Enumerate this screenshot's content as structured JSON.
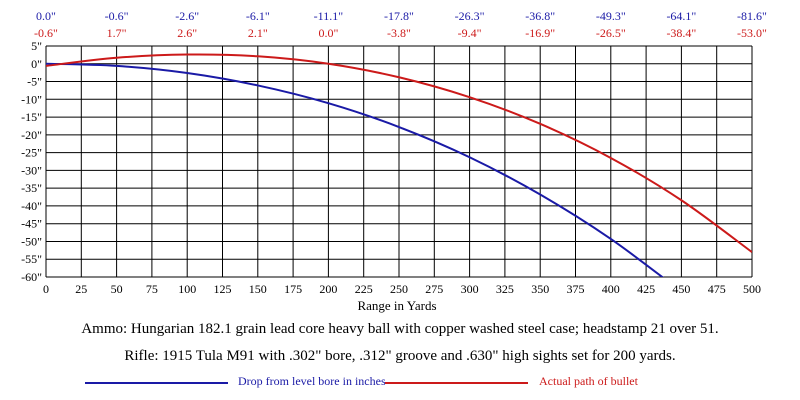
{
  "chart_data": {
    "type": "line",
    "xlabel": "Range in Yards",
    "ylabel": "",
    "xlim": [
      0,
      500
    ],
    "ylim": [
      -60,
      5
    ],
    "x_ticks": [
      0,
      25,
      50,
      75,
      100,
      125,
      150,
      175,
      200,
      225,
      250,
      275,
      300,
      325,
      350,
      375,
      400,
      425,
      450,
      475,
      500
    ],
    "y_ticks": [
      5,
      0,
      -5,
      -10,
      -15,
      -20,
      -25,
      -30,
      -35,
      -40,
      -45,
      -50,
      -55,
      -60
    ],
    "y_tick_labels": [
      "5\"",
      "0\"",
      "-5\"",
      "-10\"",
      "-15\"",
      "-20\"",
      "-25\"",
      "-30\"",
      "-35\"",
      "-40\"",
      "-45\"",
      "-50\"",
      "-55\"",
      "-60\""
    ],
    "grid": true,
    "drop_row_labels": [
      "0.0\"",
      "-0.6\"",
      "-2.6\"",
      "-6.1\"",
      "-11.1\"",
      "-17.8\"",
      "-26.3\"",
      "-36.8\"",
      "-49.3\"",
      "-64.1\"",
      "-81.6\""
    ],
    "path_row_labels": [
      "-0.6\"",
      "1.7\"",
      "2.6\"",
      "2.1\"",
      "0.0\"",
      "-3.8\"",
      "-9.4\"",
      "-16.9\"",
      "-26.5\"",
      "-38.4\"",
      "-53.0\""
    ],
    "label_x": [
      0,
      50,
      100,
      150,
      200,
      250,
      300,
      350,
      400,
      450,
      500
    ],
    "series": [
      {
        "name": "Drop from level bore in inches",
        "color": "#1a1aa6",
        "x": [
          0,
          50,
          100,
          150,
          200,
          250,
          300,
          350,
          400,
          450
        ],
        "y": [
          0.0,
          -0.6,
          -2.6,
          -6.1,
          -11.1,
          -17.8,
          -26.3,
          -36.8,
          -49.3,
          -64.1
        ]
      },
      {
        "name": "Actual path of bullet",
        "color": "#cc1a1a",
        "x": [
          0,
          50,
          100,
          150,
          200,
          250,
          300,
          350,
          400,
          450,
          500
        ],
        "y": [
          -0.6,
          1.7,
          2.6,
          2.1,
          0.0,
          -3.8,
          -9.4,
          -16.9,
          -26.5,
          -38.4,
          -53.0
        ]
      }
    ]
  },
  "caption": {
    "line1": "Ammo:  Hungarian 182.1 grain lead core heavy ball with copper washed steel case; headstamp 21 over 51.",
    "line2": "Rifle:  1915 Tula M91 with .302\" bore, .312\" groove and .630\" high sights set for 200 yards."
  },
  "colors": {
    "drop": "#1a1aa6",
    "path": "#cc1a1a",
    "grid": "#000000"
  }
}
